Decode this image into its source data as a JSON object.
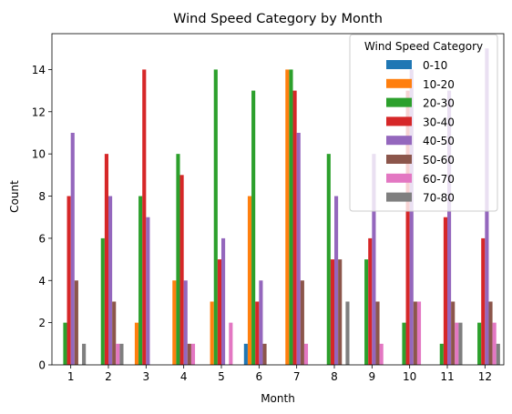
{
  "chart_data": {
    "type": "bar",
    "title": "Wind Speed Category by Month",
    "xlabel": "Month",
    "ylabel": "Count",
    "ylim": [
      0,
      15.7
    ],
    "yticks": [
      0,
      2,
      4,
      6,
      8,
      10,
      12,
      14
    ],
    "categories": [
      "1",
      "2",
      "3",
      "4",
      "5",
      "6",
      "7",
      "8",
      "9",
      "10",
      "11",
      "12"
    ],
    "legend": {
      "title": "Wind Speed Category",
      "placement": "top-right"
    },
    "series": [
      {
        "name": "0-10",
        "color": "#1f77b4",
        "values": [
          0,
          0,
          0,
          0,
          0,
          1,
          0,
          0,
          0,
          0,
          0,
          0
        ]
      },
      {
        "name": "10-20",
        "color": "#ff7f0e",
        "values": [
          0,
          0,
          2,
          4,
          3,
          8,
          14,
          0,
          0,
          0,
          0,
          0
        ]
      },
      {
        "name": "20-30",
        "color": "#2ca02c",
        "values": [
          2,
          6,
          8,
          10,
          14,
          13,
          14,
          10,
          5,
          2,
          1,
          2
        ]
      },
      {
        "name": "30-40",
        "color": "#d62728",
        "values": [
          8,
          10,
          14,
          9,
          5,
          3,
          13,
          5,
          6,
          13,
          7,
          6
        ]
      },
      {
        "name": "40-50",
        "color": "#9467bd",
        "values": [
          11,
          8,
          7,
          4,
          6,
          4,
          11,
          8,
          10,
          14,
          13,
          15
        ]
      },
      {
        "name": "50-60",
        "color": "#8c564b",
        "values": [
          4,
          3,
          0,
          1,
          0,
          1,
          4,
          5,
          3,
          3,
          3,
          3
        ]
      },
      {
        "name": "60-70",
        "color": "#e377c2",
        "values": [
          0,
          1,
          0,
          1,
          2,
          0,
          1,
          0,
          1,
          3,
          2,
          2
        ]
      },
      {
        "name": "70-80",
        "color": "#7f7f7f",
        "values": [
          1,
          1,
          0,
          0,
          0,
          0,
          0,
          3,
          0,
          0,
          2,
          1
        ]
      }
    ]
  }
}
